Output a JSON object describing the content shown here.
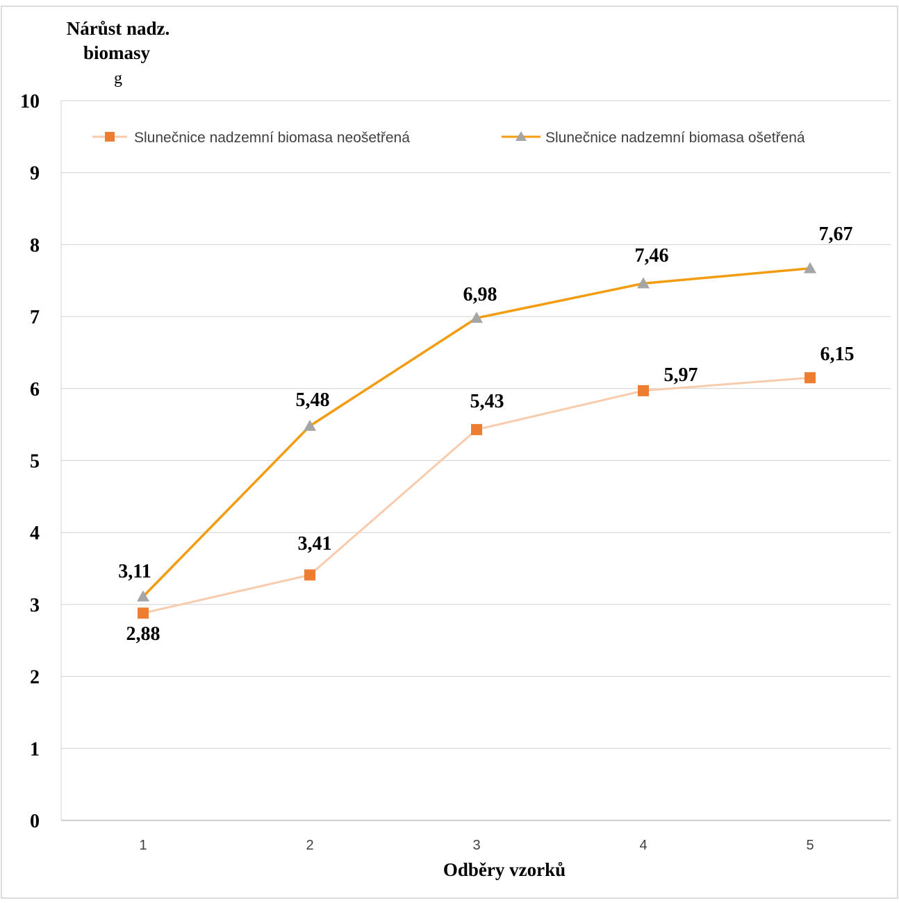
{
  "chart_data": {
    "type": "line",
    "ylabel_lines": [
      "Nárůst nadz.",
      "biomasy",
      "g"
    ],
    "xlabel": "Odběry vzorků",
    "categories": [
      "1",
      "2",
      "3",
      "4",
      "5"
    ],
    "ylim": [
      0,
      10
    ],
    "yticks": [
      "0",
      "1",
      "2",
      "3",
      "4",
      "5",
      "6",
      "7",
      "8",
      "9",
      "10"
    ],
    "grid": true,
    "legend_position": "top",
    "series": [
      {
        "name": "Slunečnice nadzemní biomasa neošetřená",
        "values": [
          2.88,
          3.41,
          5.43,
          5.97,
          6.15
        ],
        "labels": [
          "2,88",
          "3,41",
          "5,43",
          "5,97",
          "6,15"
        ],
        "line_color": "#F8CBAD",
        "marker": "square",
        "marker_color": "#ED7D31"
      },
      {
        "name": "Slunečnice nadzemní biomasa ošetřená",
        "values": [
          3.11,
          5.48,
          6.98,
          7.46,
          7.67
        ],
        "labels": [
          "3,11",
          "5,48",
          "6,98",
          "7,46",
          "7,67"
        ],
        "line_color": "#F39C12",
        "marker": "triangle",
        "marker_color": "#A5A5A5"
      }
    ]
  }
}
